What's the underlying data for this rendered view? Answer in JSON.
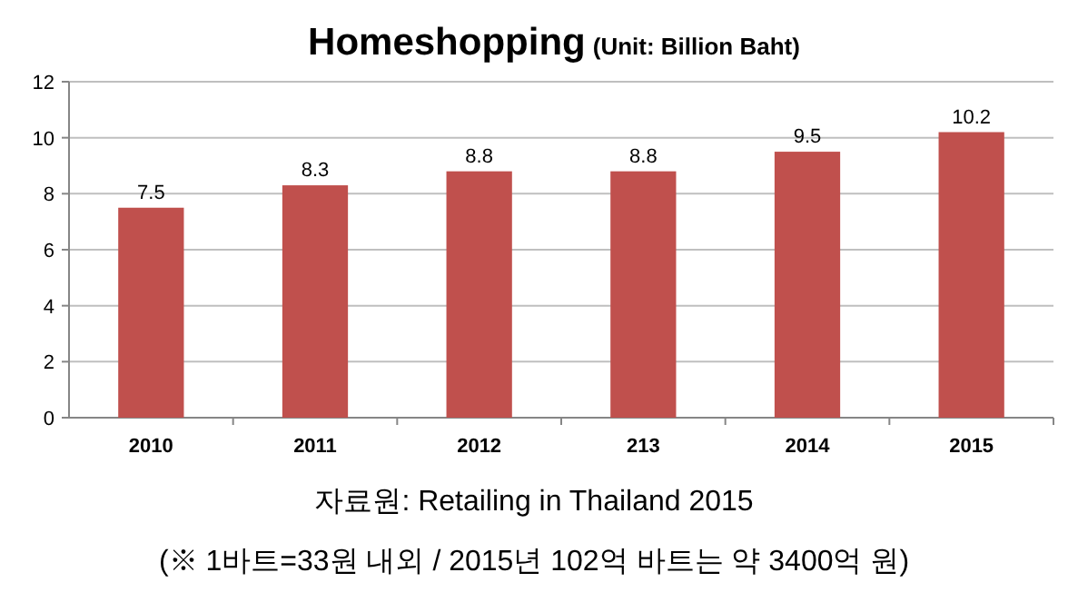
{
  "chart_data": {
    "type": "bar",
    "title": "Homeshopping",
    "subtitle": "(Unit: Billion Baht)",
    "categories": [
      "2010",
      "2011",
      "2012",
      "213",
      "2014",
      "2015"
    ],
    "values": [
      7.5,
      8.3,
      8.8,
      8.8,
      9.5,
      10.2
    ],
    "color": "#c0504d",
    "ylim": [
      0,
      12
    ],
    "yticks": [
      0,
      2,
      4,
      6,
      8,
      10,
      12
    ],
    "grid": "y",
    "data_labels": true,
    "annotations": [
      "자료원: Retailing in Thailand 2015",
      "(※ 1바트=33원 내외 / 2015년 102억 바트는 약 3400억 원)"
    ]
  }
}
